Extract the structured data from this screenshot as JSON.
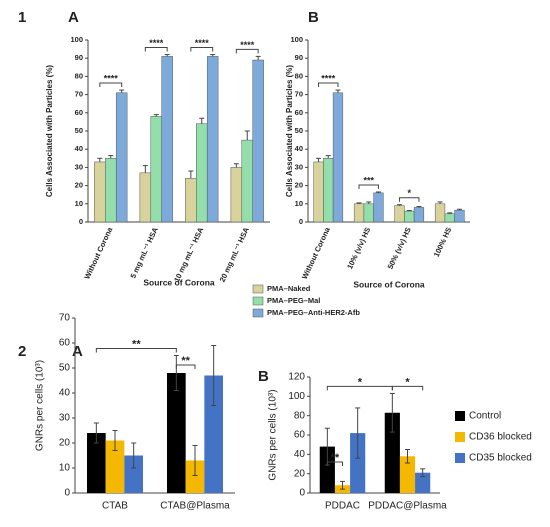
{
  "sections": [
    "1",
    "2"
  ],
  "chart_data": [
    {
      "type": "bar",
      "panel": "A",
      "ylabel": "Cells Associated with Particles (%)",
      "xlabel": "Source of Corona",
      "categories": [
        "Without Corona",
        "5 mg mL⁻¹ HSA",
        "10 mg mL⁻¹ HSA",
        "20 mg mL⁻¹ HSA"
      ],
      "series": [
        {
          "name": "PMA–Naked",
          "color": "#d8d29c",
          "values": [
            33,
            27,
            24,
            30
          ],
          "errors": [
            2,
            4,
            4,
            2
          ]
        },
        {
          "name": "PMA–PEG–Mal",
          "color": "#93deaa",
          "values": [
            35,
            58,
            54,
            45
          ],
          "errors": [
            1.5,
            1,
            3,
            5
          ]
        },
        {
          "name": "PMA–PEG–Anti-HER2-Afb",
          "color": "#7eaadb",
          "values": [
            71,
            91,
            91,
            89
          ],
          "errors": [
            1.5,
            1,
            1,
            2
          ]
        }
      ],
      "ylim": [
        0,
        100
      ],
      "yticks": [
        0,
        10,
        20,
        30,
        40,
        50,
        60,
        70,
        80,
        90,
        100
      ],
      "annotations": [
        "****",
        "****",
        "****",
        "****"
      ],
      "legend": "below"
    },
    {
      "type": "bar",
      "panel": "B",
      "ylabel": "Cells Associated with Particles (%)",
      "xlabel": "Source of Corona",
      "categories": [
        "Without Corona",
        "10% (v/v) HS",
        "50% (v/v) HS",
        "100% HS"
      ],
      "series": [
        {
          "color": "#d8d29c",
          "values": [
            33,
            10,
            9,
            10
          ],
          "errors": [
            2,
            0.5,
            0.5,
            1
          ]
        },
        {
          "color": "#93deaa",
          "values": [
            35,
            10,
            6,
            4.5
          ],
          "errors": [
            1.5,
            1,
            0.3,
            0.5
          ]
        },
        {
          "color": "#7eaadb",
          "values": [
            71,
            16,
            8,
            6.5
          ],
          "errors": [
            1.5,
            0.5,
            0.5,
            0.5
          ]
        }
      ],
      "ylim": [
        0,
        100
      ],
      "yticks": [
        0,
        10,
        20,
        30,
        40,
        50,
        60,
        70,
        80,
        90,
        100
      ],
      "annotations": [
        "****",
        "***",
        "*"
      ]
    },
    {
      "type": "bar",
      "panel": "A",
      "ylabel": "GNRs per cells (10³)",
      "categories": [
        "CTAB",
        "CTAB@Plasma"
      ],
      "series": [
        {
          "name": "Control",
          "color": "#000000",
          "values": [
            24,
            48
          ],
          "errors": [
            4,
            7
          ]
        },
        {
          "name": "CD36 blocked",
          "color": "#f5b800",
          "values": [
            21,
            13
          ],
          "errors": [
            4,
            6
          ]
        },
        {
          "name": "CD35 blocked",
          "color": "#4472c4",
          "values": [
            15,
            47
          ],
          "errors": [
            5,
            12
          ]
        }
      ],
      "ylim": [
        0,
        70
      ],
      "yticks": [
        0,
        10,
        20,
        30,
        40,
        50,
        60,
        70
      ],
      "annotations": [
        "**",
        "**"
      ],
      "legend": "right"
    },
    {
      "type": "bar",
      "panel": "B",
      "ylabel": "GNRs per cells (10³)",
      "categories": [
        "PDDAC",
        "PDDAC@Plasma"
      ],
      "series": [
        {
          "color": "#000000",
          "values": [
            48,
            83
          ],
          "errors": [
            19,
            20
          ]
        },
        {
          "color": "#f5b800",
          "values": [
            8,
            38
          ],
          "errors": [
            4,
            7
          ]
        },
        {
          "color": "#4472c4",
          "values": [
            62,
            21
          ],
          "errors": [
            26,
            4
          ]
        }
      ],
      "ylim": [
        0,
        120
      ],
      "yticks": [
        0,
        20,
        40,
        60,
        80,
        100,
        120
      ],
      "annotations": [
        "**",
        "*",
        "*"
      ]
    }
  ]
}
